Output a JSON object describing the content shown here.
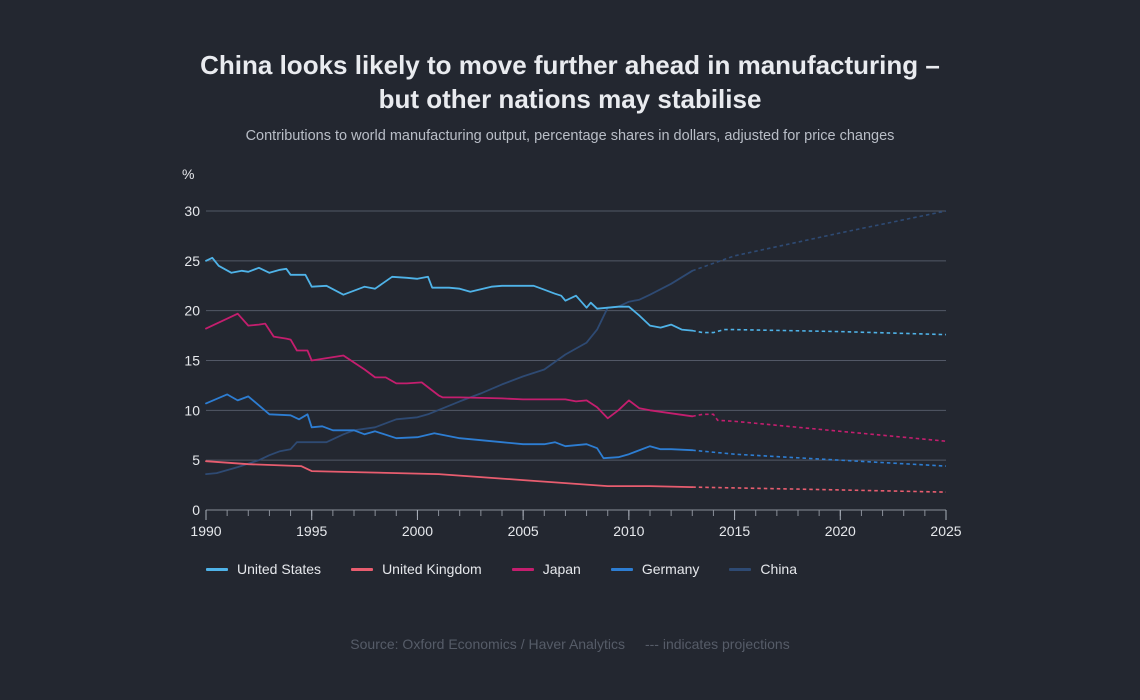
{
  "chart_data": {
    "type": "line",
    "title_line1": "China looks likely to move further ahead in manufacturing –",
    "title_line2": "but other nations may stabilise",
    "subtitle": "Contributions to  world manufacturing output, percentage shares in dollars, adjusted for price changes",
    "ylabel": "%",
    "xlim": [
      1990,
      2025
    ],
    "ylim": [
      0,
      30
    ],
    "xticks": [
      1990,
      1995,
      2000,
      2005,
      2010,
      2015,
      2020,
      2025
    ],
    "yticks": [
      0,
      5,
      10,
      15,
      20,
      25,
      30
    ],
    "grid": "horizontal",
    "legend_position": "bottom",
    "projection_start": 2013,
    "series": [
      {
        "name": "United States",
        "color": "#4fb3e8",
        "actual": [
          [
            1990,
            25
          ],
          [
            1990.3,
            25.3
          ],
          [
            1990.6,
            24.5
          ],
          [
            1991.2,
            23.8
          ],
          [
            1991.7,
            24
          ],
          [
            1992,
            23.9
          ],
          [
            1992.5,
            24.3
          ],
          [
            1993,
            23.8
          ],
          [
            1993.5,
            24.1
          ],
          [
            1993.8,
            24.2
          ],
          [
            1994,
            23.6
          ],
          [
            1994.7,
            23.6
          ],
          [
            1995,
            22.4
          ],
          [
            1995.7,
            22.5
          ],
          [
            1996.5,
            21.6
          ],
          [
            1997.5,
            22.4
          ],
          [
            1998,
            22.2
          ],
          [
            1998.8,
            23.4
          ],
          [
            1999.5,
            23.3
          ],
          [
            2000,
            23.2
          ],
          [
            2000.5,
            23.4
          ],
          [
            2000.7,
            22.3
          ],
          [
            2001.5,
            22.3
          ],
          [
            2002,
            22.2
          ],
          [
            2002.5,
            21.9
          ],
          [
            2003.5,
            22.4
          ],
          [
            2004,
            22.5
          ],
          [
            2005,
            22.5
          ],
          [
            2005.5,
            22.5
          ],
          [
            2006,
            22.1
          ],
          [
            2006.5,
            21.7
          ],
          [
            2006.8,
            21.5
          ],
          [
            2007,
            21
          ],
          [
            2007.5,
            21.5
          ],
          [
            2008,
            20.3
          ],
          [
            2008.2,
            20.8
          ],
          [
            2008.5,
            20.2
          ],
          [
            2009,
            20.3
          ],
          [
            2009.5,
            20.4
          ],
          [
            2010,
            20.4
          ],
          [
            2010.5,
            19.5
          ],
          [
            2011,
            18.5
          ],
          [
            2011.5,
            18.3
          ],
          [
            2012,
            18.6
          ],
          [
            2012.5,
            18.1
          ],
          [
            2013,
            18
          ]
        ],
        "projection": [
          [
            2013,
            18
          ],
          [
            2013.5,
            17.8
          ],
          [
            2014,
            17.8
          ],
          [
            2014.5,
            18.1
          ],
          [
            2015,
            18.1
          ],
          [
            2020,
            17.9
          ],
          [
            2025,
            17.6
          ]
        ]
      },
      {
        "name": "United Kingdom",
        "color": "#e85d6f",
        "actual": [
          [
            1990,
            4.9
          ],
          [
            1992,
            4.6
          ],
          [
            1994.5,
            4.4
          ],
          [
            1995,
            3.9
          ],
          [
            1997,
            3.8
          ],
          [
            2001,
            3.6
          ],
          [
            2005,
            3
          ],
          [
            2009,
            2.4
          ],
          [
            2011,
            2.4
          ],
          [
            2013,
            2.3
          ]
        ],
        "projection": [
          [
            2013,
            2.3
          ],
          [
            2018,
            2.1
          ],
          [
            2025,
            1.8
          ]
        ]
      },
      {
        "name": "Japan",
        "color": "#c41e6e",
        "actual": [
          [
            1990,
            18.2
          ],
          [
            1991.5,
            19.7
          ],
          [
            1992,
            18.5
          ],
          [
            1992.5,
            18.6
          ],
          [
            1992.8,
            18.7
          ],
          [
            1993.2,
            17.4
          ],
          [
            1993.8,
            17.2
          ],
          [
            1994,
            17.1
          ],
          [
            1994.3,
            16
          ],
          [
            1994.8,
            16
          ],
          [
            1995,
            15
          ],
          [
            1996.5,
            15.5
          ],
          [
            1997.5,
            14.1
          ],
          [
            1998,
            13.3
          ],
          [
            1998.5,
            13.3
          ],
          [
            1999,
            12.7
          ],
          [
            1999.5,
            12.7
          ],
          [
            2000.2,
            12.8
          ],
          [
            2001,
            11.5
          ],
          [
            2001.2,
            11.3
          ],
          [
            2002,
            11.3
          ],
          [
            2004,
            11.2
          ],
          [
            2005,
            11.1
          ],
          [
            2006,
            11.1
          ],
          [
            2007,
            11.1
          ],
          [
            2007.5,
            10.9
          ],
          [
            2008,
            11
          ],
          [
            2008.5,
            10.3
          ],
          [
            2009,
            9.2
          ],
          [
            2009.5,
            10
          ],
          [
            2010,
            11
          ],
          [
            2010.5,
            10.2
          ],
          [
            2011,
            10
          ],
          [
            2013,
            9.4
          ]
        ],
        "projection": [
          [
            2013,
            9.4
          ],
          [
            2013.5,
            9.6
          ],
          [
            2014,
            9.6
          ],
          [
            2014.2,
            9
          ],
          [
            2015,
            8.9
          ],
          [
            2020,
            7.9
          ],
          [
            2025,
            6.9
          ]
        ]
      },
      {
        "name": "Germany",
        "color": "#2d7dd2",
        "actual": [
          [
            1990,
            10.7
          ],
          [
            1991,
            11.6
          ],
          [
            1991.5,
            11
          ],
          [
            1992,
            11.4
          ],
          [
            1993,
            9.6
          ],
          [
            1994,
            9.5
          ],
          [
            1994.4,
            9.1
          ],
          [
            1994.8,
            9.6
          ],
          [
            1995,
            8.3
          ],
          [
            1995.5,
            8.4
          ],
          [
            1996,
            8
          ],
          [
            1997,
            8
          ],
          [
            1997.5,
            7.6
          ],
          [
            1998,
            7.9
          ],
          [
            1999,
            7.2
          ],
          [
            2000,
            7.3
          ],
          [
            2000.8,
            7.7
          ],
          [
            2002,
            7.2
          ],
          [
            2003,
            7
          ],
          [
            2004,
            6.8
          ],
          [
            2005,
            6.6
          ],
          [
            2006,
            6.6
          ],
          [
            2006.5,
            6.8
          ],
          [
            2007,
            6.4
          ],
          [
            2008,
            6.6
          ],
          [
            2008.5,
            6.2
          ],
          [
            2008.8,
            5.2
          ],
          [
            2009.5,
            5.3
          ],
          [
            2010,
            5.6
          ],
          [
            2011,
            6.4
          ],
          [
            2011.5,
            6.1
          ],
          [
            2012,
            6.1
          ],
          [
            2013,
            6
          ]
        ],
        "projection": [
          [
            2013,
            6
          ],
          [
            2015,
            5.6
          ],
          [
            2020,
            5
          ],
          [
            2025,
            4.4
          ]
        ]
      },
      {
        "name": "China",
        "color": "#2e4a73",
        "actual": [
          [
            1990,
            3.6
          ],
          [
            1990.5,
            3.7
          ],
          [
            1991.5,
            4.3
          ],
          [
            1992.5,
            5
          ],
          [
            1993,
            5.5
          ],
          [
            1993.5,
            5.9
          ],
          [
            1994,
            6.1
          ],
          [
            1994.3,
            6.8
          ],
          [
            1995,
            6.8
          ],
          [
            1995.7,
            6.8
          ],
          [
            1996.5,
            7.6
          ],
          [
            1997,
            8
          ],
          [
            1998,
            8.3
          ],
          [
            1999,
            9.1
          ],
          [
            2000,
            9.3
          ],
          [
            2000.5,
            9.6
          ],
          [
            2002,
            10.9
          ],
          [
            2003,
            11.7
          ],
          [
            2004,
            12.6
          ],
          [
            2005,
            13.4
          ],
          [
            2006,
            14.1
          ],
          [
            2007,
            15.6
          ],
          [
            2008,
            16.8
          ],
          [
            2008.5,
            18.1
          ],
          [
            2009,
            20.3
          ],
          [
            2009.5,
            20.4
          ],
          [
            2010,
            20.9
          ],
          [
            2010.5,
            21.1
          ],
          [
            2011,
            21.6
          ],
          [
            2012,
            22.7
          ],
          [
            2013,
            24
          ]
        ],
        "projection": [
          [
            2013,
            24
          ],
          [
            2015,
            25.5
          ],
          [
            2020,
            27.8
          ],
          [
            2025,
            30
          ]
        ]
      }
    ]
  },
  "footer": {
    "source": "Source: Oxford Economics / Haver Analytics",
    "projection_note": "--- indicates projections"
  }
}
